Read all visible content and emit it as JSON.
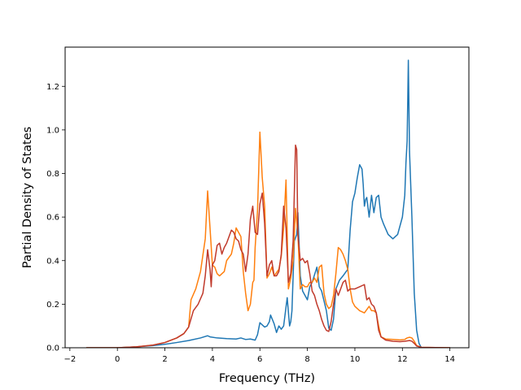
{
  "chart_data": {
    "type": "line",
    "title": "",
    "xlabel": "Frequency (THz)",
    "ylabel": "Partial Density of States",
    "xlim": [
      -2.2,
      14.8
    ],
    "ylim": [
      0,
      1.38
    ],
    "xticks": [
      -2,
      0,
      2,
      4,
      6,
      8,
      10,
      12,
      14
    ],
    "xtick_labels": [
      "−2",
      "0",
      "2",
      "4",
      "6",
      "8",
      "10",
      "12",
      "14"
    ],
    "yticks": [
      0,
      0.2,
      0.4,
      0.6,
      0.8,
      1.0,
      1.2
    ],
    "ytick_labels": [
      "0.0",
      "0.2",
      "0.4",
      "0.6",
      "0.8",
      "1.0",
      "1.2"
    ],
    "grid": false,
    "legend": null,
    "series": [
      {
        "color": "#1f77b4",
        "points": [
          [
            -1.3,
            0
          ],
          [
            0,
            0
          ],
          [
            0.8,
            0.004
          ],
          [
            1.5,
            0.01
          ],
          [
            2.0,
            0.016
          ],
          [
            2.5,
            0.024
          ],
          [
            3.0,
            0.033
          ],
          [
            3.5,
            0.045
          ],
          [
            3.8,
            0.055
          ],
          [
            3.9,
            0.05
          ],
          [
            4.2,
            0.045
          ],
          [
            4.6,
            0.042
          ],
          [
            5.0,
            0.04
          ],
          [
            5.2,
            0.045
          ],
          [
            5.4,
            0.038
          ],
          [
            5.6,
            0.04
          ],
          [
            5.8,
            0.035
          ],
          [
            5.9,
            0.06
          ],
          [
            6.0,
            0.115
          ],
          [
            6.2,
            0.095
          ],
          [
            6.3,
            0.1
          ],
          [
            6.4,
            0.12
          ],
          [
            6.45,
            0.15
          ],
          [
            6.6,
            0.11
          ],
          [
            6.7,
            0.07
          ],
          [
            6.8,
            0.1
          ],
          [
            6.9,
            0.085
          ],
          [
            7.0,
            0.1
          ],
          [
            7.15,
            0.23
          ],
          [
            7.25,
            0.1
          ],
          [
            7.3,
            0.12
          ],
          [
            7.35,
            0.17
          ],
          [
            7.45,
            0.49
          ],
          [
            7.55,
            0.52
          ],
          [
            7.6,
            0.62
          ],
          [
            7.7,
            0.33
          ],
          [
            7.8,
            0.26
          ],
          [
            8.0,
            0.22
          ],
          [
            8.1,
            0.28
          ],
          [
            8.2,
            0.3
          ],
          [
            8.4,
            0.37
          ],
          [
            8.5,
            0.28
          ],
          [
            8.6,
            0.26
          ],
          [
            8.8,
            0.17
          ],
          [
            8.9,
            0.09
          ],
          [
            9.0,
            0.08
          ],
          [
            9.1,
            0.13
          ],
          [
            9.2,
            0.27
          ],
          [
            9.35,
            0.31
          ],
          [
            9.5,
            0.33
          ],
          [
            9.7,
            0.36
          ],
          [
            9.8,
            0.54
          ],
          [
            9.9,
            0.67
          ],
          [
            10.0,
            0.71
          ],
          [
            10.1,
            0.78
          ],
          [
            10.2,
            0.84
          ],
          [
            10.3,
            0.82
          ],
          [
            10.35,
            0.75
          ],
          [
            10.4,
            0.65
          ],
          [
            10.45,
            0.68
          ],
          [
            10.5,
            0.69
          ],
          [
            10.6,
            0.6
          ],
          [
            10.7,
            0.7
          ],
          [
            10.8,
            0.62
          ],
          [
            10.9,
            0.69
          ],
          [
            11.0,
            0.7
          ],
          [
            11.1,
            0.6
          ],
          [
            11.2,
            0.57
          ],
          [
            11.4,
            0.52
          ],
          [
            11.6,
            0.5
          ],
          [
            11.8,
            0.52
          ],
          [
            12.0,
            0.6
          ],
          [
            12.1,
            0.7
          ],
          [
            12.15,
            0.85
          ],
          [
            12.2,
            0.95
          ],
          [
            12.25,
            1.32
          ],
          [
            12.3,
            0.9
          ],
          [
            12.4,
            0.6
          ],
          [
            12.5,
            0.25
          ],
          [
            12.6,
            0.08
          ],
          [
            12.7,
            0.02
          ],
          [
            12.8,
            0
          ],
          [
            14.0,
            0
          ]
        ]
      },
      {
        "color": "#ff7f0e",
        "points": [
          [
            -1.3,
            0
          ],
          [
            0,
            0
          ],
          [
            0.8,
            0.004
          ],
          [
            1.5,
            0.012
          ],
          [
            2.0,
            0.024
          ],
          [
            2.5,
            0.045
          ],
          [
            2.8,
            0.065
          ],
          [
            3.0,
            0.095
          ],
          [
            3.1,
            0.22
          ],
          [
            3.3,
            0.27
          ],
          [
            3.5,
            0.35
          ],
          [
            3.7,
            0.5
          ],
          [
            3.8,
            0.72
          ],
          [
            3.9,
            0.55
          ],
          [
            4.0,
            0.38
          ],
          [
            4.1,
            0.37
          ],
          [
            4.2,
            0.34
          ],
          [
            4.3,
            0.33
          ],
          [
            4.5,
            0.35
          ],
          [
            4.6,
            0.4
          ],
          [
            4.8,
            0.43
          ],
          [
            4.9,
            0.48
          ],
          [
            5.0,
            0.55
          ],
          [
            5.1,
            0.53
          ],
          [
            5.2,
            0.51
          ],
          [
            5.3,
            0.35
          ],
          [
            5.4,
            0.25
          ],
          [
            5.5,
            0.17
          ],
          [
            5.6,
            0.2
          ],
          [
            5.7,
            0.3
          ],
          [
            5.75,
            0.31
          ],
          [
            5.8,
            0.46
          ],
          [
            5.9,
            0.63
          ],
          [
            6.0,
            0.99
          ],
          [
            6.1,
            0.78
          ],
          [
            6.2,
            0.65
          ],
          [
            6.3,
            0.32
          ],
          [
            6.4,
            0.34
          ],
          [
            6.5,
            0.37
          ],
          [
            6.6,
            0.33
          ],
          [
            6.8,
            0.36
          ],
          [
            6.9,
            0.42
          ],
          [
            7.0,
            0.55
          ],
          [
            7.1,
            0.77
          ],
          [
            7.2,
            0.27
          ],
          [
            7.3,
            0.32
          ],
          [
            7.4,
            0.4
          ],
          [
            7.5,
            0.64
          ],
          [
            7.6,
            0.52
          ],
          [
            7.7,
            0.27
          ],
          [
            7.8,
            0.29
          ],
          [
            7.9,
            0.28
          ],
          [
            8.0,
            0.28
          ],
          [
            8.1,
            0.3
          ],
          [
            8.2,
            0.3
          ],
          [
            8.3,
            0.32
          ],
          [
            8.4,
            0.3
          ],
          [
            8.5,
            0.37
          ],
          [
            8.6,
            0.38
          ],
          [
            8.7,
            0.25
          ],
          [
            8.8,
            0.2
          ],
          [
            8.9,
            0.18
          ],
          [
            9.0,
            0.19
          ],
          [
            9.1,
            0.24
          ],
          [
            9.2,
            0.34
          ],
          [
            9.3,
            0.46
          ],
          [
            9.4,
            0.45
          ],
          [
            9.5,
            0.43
          ],
          [
            9.6,
            0.4
          ],
          [
            9.7,
            0.36
          ],
          [
            9.8,
            0.27
          ],
          [
            9.9,
            0.21
          ],
          [
            10.0,
            0.19
          ],
          [
            10.2,
            0.17
          ],
          [
            10.4,
            0.16
          ],
          [
            10.6,
            0.19
          ],
          [
            10.7,
            0.17
          ],
          [
            10.8,
            0.17
          ],
          [
            10.9,
            0.16
          ],
          [
            11.0,
            0.1
          ],
          [
            11.1,
            0.05
          ],
          [
            11.3,
            0.04
          ],
          [
            11.6,
            0.038
          ],
          [
            11.9,
            0.036
          ],
          [
            12.1,
            0.038
          ],
          [
            12.2,
            0.045
          ],
          [
            12.3,
            0.048
          ],
          [
            12.4,
            0.045
          ],
          [
            12.5,
            0.03
          ],
          [
            12.6,
            0.01
          ],
          [
            12.8,
            0.002
          ],
          [
            14.0,
            0
          ]
        ]
      },
      {
        "color": "#c0392b",
        "points": [
          [
            -1.3,
            0
          ],
          [
            0,
            0
          ],
          [
            0.8,
            0.004
          ],
          [
            1.5,
            0.012
          ],
          [
            2.0,
            0.024
          ],
          [
            2.5,
            0.045
          ],
          [
            2.8,
            0.065
          ],
          [
            3.0,
            0.095
          ],
          [
            3.2,
            0.17
          ],
          [
            3.4,
            0.2
          ],
          [
            3.6,
            0.25
          ],
          [
            3.7,
            0.33
          ],
          [
            3.8,
            0.45
          ],
          [
            3.9,
            0.36
          ],
          [
            3.95,
            0.28
          ],
          [
            4.0,
            0.38
          ],
          [
            4.1,
            0.4
          ],
          [
            4.2,
            0.47
          ],
          [
            4.3,
            0.48
          ],
          [
            4.4,
            0.43
          ],
          [
            4.5,
            0.46
          ],
          [
            4.6,
            0.48
          ],
          [
            4.8,
            0.54
          ],
          [
            4.9,
            0.53
          ],
          [
            5.0,
            0.5
          ],
          [
            5.1,
            0.49
          ],
          [
            5.2,
            0.45
          ],
          [
            5.3,
            0.43
          ],
          [
            5.4,
            0.35
          ],
          [
            5.5,
            0.43
          ],
          [
            5.6,
            0.59
          ],
          [
            5.7,
            0.65
          ],
          [
            5.8,
            0.53
          ],
          [
            5.9,
            0.52
          ],
          [
            6.0,
            0.66
          ],
          [
            6.1,
            0.71
          ],
          [
            6.2,
            0.57
          ],
          [
            6.3,
            0.33
          ],
          [
            6.4,
            0.38
          ],
          [
            6.5,
            0.4
          ],
          [
            6.6,
            0.33
          ],
          [
            6.7,
            0.33
          ],
          [
            6.8,
            0.35
          ],
          [
            6.9,
            0.43
          ],
          [
            7.0,
            0.65
          ],
          [
            7.1,
            0.55
          ],
          [
            7.2,
            0.3
          ],
          [
            7.3,
            0.34
          ],
          [
            7.4,
            0.49
          ],
          [
            7.5,
            0.93
          ],
          [
            7.55,
            0.91
          ],
          [
            7.6,
            0.52
          ],
          [
            7.7,
            0.4
          ],
          [
            7.8,
            0.41
          ],
          [
            7.9,
            0.39
          ],
          [
            8.0,
            0.4
          ],
          [
            8.1,
            0.34
          ],
          [
            8.2,
            0.26
          ],
          [
            8.3,
            0.24
          ],
          [
            8.4,
            0.2
          ],
          [
            8.5,
            0.17
          ],
          [
            8.6,
            0.13
          ],
          [
            8.7,
            0.1
          ],
          [
            8.8,
            0.08
          ],
          [
            8.9,
            0.075
          ],
          [
            9.0,
            0.12
          ],
          [
            9.1,
            0.2
          ],
          [
            9.2,
            0.27
          ],
          [
            9.3,
            0.24
          ],
          [
            9.4,
            0.27
          ],
          [
            9.5,
            0.3
          ],
          [
            9.6,
            0.31
          ],
          [
            9.7,
            0.26
          ],
          [
            9.8,
            0.27
          ],
          [
            10.0,
            0.27
          ],
          [
            10.2,
            0.28
          ],
          [
            10.4,
            0.29
          ],
          [
            10.5,
            0.22
          ],
          [
            10.6,
            0.23
          ],
          [
            10.7,
            0.2
          ],
          [
            10.8,
            0.19
          ],
          [
            10.9,
            0.16
          ],
          [
            11.0,
            0.08
          ],
          [
            11.1,
            0.05
          ],
          [
            11.3,
            0.035
          ],
          [
            11.6,
            0.03
          ],
          [
            11.9,
            0.028
          ],
          [
            12.1,
            0.03
          ],
          [
            12.3,
            0.033
          ],
          [
            12.4,
            0.03
          ],
          [
            12.5,
            0.02
          ],
          [
            12.6,
            0.008
          ],
          [
            12.8,
            0.002
          ],
          [
            14.0,
            0
          ]
        ]
      }
    ]
  }
}
